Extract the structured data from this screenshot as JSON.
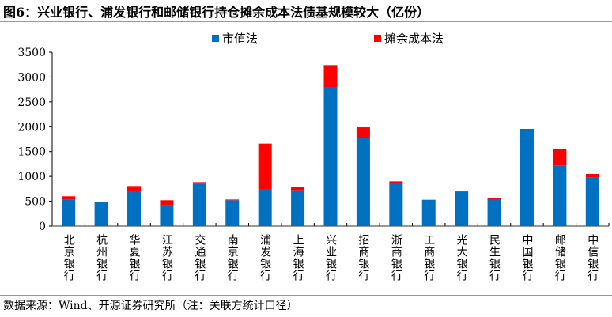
{
  "title": "图6：兴业银行、浦发银行和邮储银行持仓摊余成本法债基规模较大（亿份）",
  "source": "数据来源：Wind、开源证券研究所（注：关联方统计口径）",
  "chart_data": {
    "type": "bar",
    "stacked": true,
    "title": "图6：兴业银行、浦发银行和邮储银行持仓摊余成本法债基规模较大（亿份）",
    "xlabel": "",
    "ylabel": "",
    "ylim": [
      0,
      3500
    ],
    "yticks": [
      0,
      500,
      1000,
      1500,
      2000,
      2500,
      3000,
      3500
    ],
    "grid": false,
    "legend_position": "top-center",
    "categories": [
      "北京银行",
      "杭州银行",
      "华夏银行",
      "江苏银行",
      "交通银行",
      "南京银行",
      "浦发银行",
      "上海银行",
      "兴业银行",
      "招商银行",
      "浙商银行",
      "工商银行",
      "光大银行",
      "民生银行",
      "中国银行",
      "邮储银行",
      "中信银行"
    ],
    "series": [
      {
        "name": "市值法",
        "color": "#0070C0",
        "values": [
          530,
          477,
          710,
          420,
          854,
          520,
          748,
          721,
          2800,
          1776,
          875,
          530,
          695,
          541,
          1957,
          1220,
          976
        ]
      },
      {
        "name": "摊余成本法",
        "color": "#FF0000",
        "values": [
          70,
          0,
          96,
          100,
          31,
          15,
          912,
          74,
          440,
          212,
          26,
          0,
          21,
          16,
          0,
          339,
          74
        ]
      }
    ]
  }
}
